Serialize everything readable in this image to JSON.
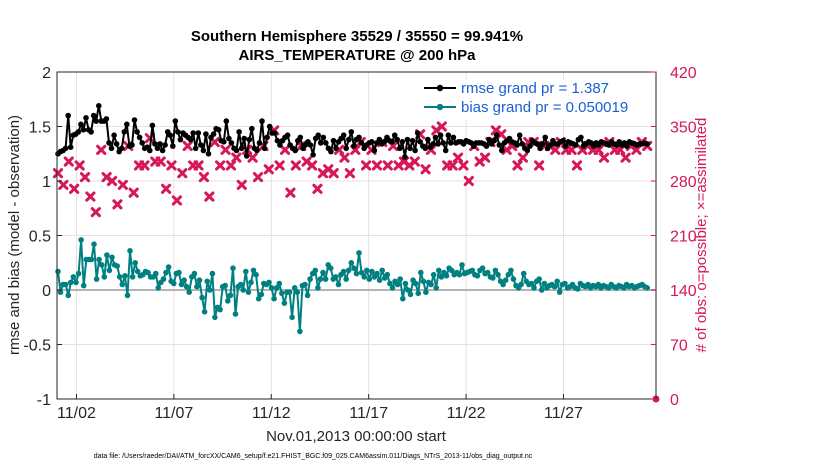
{
  "chart_data": {
    "type": "line",
    "title": "Southern Hemisphere 35529 / 35550 = 99.941%",
    "subtitle": "AIRS_TEMPERATURE @ 200 hPa",
    "xlabel": "Nov.01,2013 00:00:00 start",
    "ylabel_left": "rmse and bias (model - observation)",
    "ylabel_right": "# of obs: o=possible; ×=assimilated",
    "ylim_left": [
      -1,
      2
    ],
    "ylim_right": [
      0,
      420
    ],
    "xlim": [
      0,
      30.75
    ],
    "left_ticks": [
      "-1",
      "-0.5",
      "0",
      "0.5",
      "1",
      "1.5",
      "2"
    ],
    "right_ticks": [
      "0",
      "70",
      "140",
      "210",
      "280",
      "350",
      "420"
    ],
    "x_ticks": [
      {
        "day": 1,
        "label": "11/02"
      },
      {
        "day": 6,
        "label": "11/07"
      },
      {
        "day": 11,
        "label": "11/12"
      },
      {
        "day": 16,
        "label": "11/17"
      },
      {
        "day": 21,
        "label": "11/22"
      },
      {
        "day": 26,
        "label": "11/27"
      }
    ],
    "footnote": "data file: /Users/raeder/DAI/ATM_forcXX/CAM6_setup/f.e21.FHIST_BGC.f09_025.CAM6assim.011/Diags_NTrS_2013-11/obs_diag_output.nc",
    "colors": {
      "rmse": "#000000",
      "bias": "#008080",
      "obs": "#d6175a",
      "legend_text": "#1a5fd6",
      "zero_line": "#b4b4b4",
      "grid": "#eddde2"
    },
    "series": [
      {
        "name": "rmse grand pr = 1.387",
        "axis": "left",
        "values": [
          1.25,
          1.27,
          1.28,
          1.3,
          1.6,
          1.31,
          1.42,
          1.43,
          1.45,
          1.52,
          1.47,
          1.58,
          1.47,
          1.45,
          1.6,
          1.55,
          1.69,
          1.55,
          1.55,
          1.57,
          1.35,
          1.3,
          1.42,
          1.34,
          1.27,
          1.3,
          1.45,
          1.52,
          1.32,
          1.33,
          1.56,
          1.45,
          1.4,
          1.35,
          1.3,
          1.31,
          1.28,
          1.51,
          1.34,
          1.3,
          1.34,
          1.28,
          1.33,
          1.45,
          1.42,
          1.32,
          1.55,
          1.45,
          1.38,
          1.44,
          1.42,
          1.4,
          1.38,
          1.44,
          1.3,
          1.44,
          1.33,
          1.28,
          1.43,
          1.25,
          1.4,
          1.43,
          1.48,
          1.47,
          1.37,
          1.36,
          1.55,
          1.39,
          1.35,
          1.3,
          1.28,
          1.45,
          1.3,
          1.39,
          1.23,
          1.38,
          1.48,
          1.3,
          1.28,
          1.35,
          1.55,
          1.3,
          1.4,
          1.5,
          1.44,
          1.44,
          1.37,
          1.33,
          1.37,
          1.4,
          1.42,
          1.33,
          1.3,
          1.28,
          1.37,
          1.4,
          1.3,
          1.33,
          1.36,
          1.33,
          1.24,
          1.39,
          1.42,
          1.35,
          1.4,
          1.35,
          1.3,
          1.27,
          1.37,
          1.3,
          1.36,
          1.39,
          1.42,
          1.3,
          1.38,
          1.45,
          1.32,
          1.38,
          1.4,
          1.35,
          1.3,
          1.33,
          1.35,
          1.36,
          1.28,
          1.35,
          1.38,
          1.34,
          1.36,
          1.4,
          1.37,
          1.36,
          1.42,
          1.38,
          1.3,
          1.36,
          1.22,
          1.38,
          1.3,
          1.37,
          1.28,
          1.44,
          1.36,
          1.32,
          1.3,
          1.38,
          1.31,
          1.34,
          1.4,
          1.34,
          1.42,
          1.35,
          1.28,
          1.42,
          1.35,
          1.4,
          1.35,
          1.36,
          1.36,
          1.34,
          1.37,
          1.36,
          1.35,
          1.32,
          1.35,
          1.35,
          1.35,
          1.34,
          1.32,
          1.38,
          1.34,
          1.37,
          1.42,
          1.33,
          1.28,
          1.35,
          1.37,
          1.39,
          1.36,
          1.35,
          1.33,
          1.42,
          1.34,
          1.3,
          1.28,
          1.32,
          1.37,
          1.35,
          1.34,
          1.3,
          1.34,
          1.4,
          1.3,
          1.33,
          1.37,
          1.34,
          1.34,
          1.36,
          1.37,
          1.32,
          1.36,
          1.35,
          1.34,
          1.33,
          1.38,
          1.4,
          1.32,
          1.34,
          1.36,
          1.35,
          1.32,
          1.35,
          1.33,
          1.36,
          1.35,
          1.34,
          1.33,
          1.36,
          1.34,
          1.33,
          1.36,
          1.33,
          1.35,
          1.32,
          1.36,
          1.35,
          1.34,
          1.33,
          1.34,
          1.34,
          1.35,
          1.34
        ]
      },
      {
        "name": "bias grand pr = 0.050019",
        "axis": "left",
        "values": [
          0.17,
          -0.02,
          0.05,
          0.05,
          -0.05,
          0.07,
          0.12,
          0.07,
          0.15,
          0.46,
          0.04,
          0.28,
          0.28,
          0.28,
          0.42,
          0.1,
          0.28,
          0.23,
          0.12,
          0.32,
          0.18,
          0.3,
          0.23,
          0.22,
          0.12,
          0.05,
          0.13,
          -0.05,
          0.36,
          0.12,
          0.25,
          0.17,
          0.13,
          0.14,
          0.17,
          0.16,
          0.12,
          0.12,
          0.15,
          0.02,
          0.07,
          0.1,
          0.16,
          0.21,
          0.08,
          0.06,
          0.15,
          0.16,
          0.05,
          0.09,
          0.03,
          -0.02,
          0.12,
          0.15,
          0.03,
          0.09,
          -0.07,
          -0.2,
          0.08,
          0.0,
          0.15,
          -0.25,
          -0.16,
          -0.18,
          0.03,
          0.04,
          -0.1,
          -0.05,
          0.2,
          -0.22,
          0.03,
          0.05,
          0.0,
          0.17,
          -0.02,
          0.07,
          0.18,
          0.14,
          -0.08,
          -0.04,
          0.06,
          0.05,
          0.07,
          0.02,
          -0.08,
          0.02,
          0.06,
          -0.03,
          -0.12,
          -0.02,
          -0.02,
          -0.25,
          0.02,
          -0.02,
          -0.38,
          0.04,
          0.05,
          -0.05,
          0.1,
          0.15,
          0.18,
          0.02,
          0.1,
          0.16,
          0.1,
          0.23,
          0.2,
          0.1,
          0.12,
          0.05,
          0.14,
          0.17,
          0.1,
          0.18,
          0.25,
          0.2,
          0.15,
          0.34,
          0.16,
          0.12,
          0.18,
          0.1,
          0.17,
          0.12,
          0.15,
          0.09,
          0.18,
          0.11,
          0.14,
          0.06,
          0.02,
          0.08,
          0.05,
          0.1,
          -0.08,
          0.06,
          0.0,
          -0.04,
          0.09,
          0.06,
          -0.03,
          0.16,
          0.08,
          -0.02,
          0.07,
          0.05,
          0.14,
          0.02,
          0.18,
          0.12,
          0.16,
          0.13,
          0.2,
          0.18,
          0.14,
          0.16,
          0.14,
          0.23,
          0.15,
          0.16,
          0.17,
          0.18,
          0.14,
          0.13,
          0.18,
          0.2,
          0.15,
          0.16,
          0.12,
          0.11,
          0.18,
          0.14,
          0.08,
          0.05,
          0.09,
          0.14,
          0.18,
          0.1,
          0.04,
          0.02,
          0.05,
          0.15,
          0.08,
          0.05,
          0.06,
          0.02,
          0.08,
          0.1,
          0.0,
          0.06,
          0.02,
          0.04,
          0.05,
          0.03,
          0.08,
          -0.02,
          0.05,
          0.06,
          0.02,
          0.03,
          0.05,
          0.02,
          0.01,
          0.06,
          0.04,
          0.03,
          0.05,
          0.02,
          0.04,
          0.03,
          0.05,
          0.02,
          0.04,
          0.03,
          0.02,
          0.05,
          0.03,
          0.02,
          0.04,
          0.03,
          0.02,
          0.05,
          0.03,
          0.04,
          0.02,
          0.03,
          0.04,
          0.05,
          0.03,
          0.02
        ]
      },
      {
        "name": "assimilated obs",
        "axis": "right",
        "values": [
          290,
          275,
          305,
          270,
          300,
          285,
          260,
          240,
          320,
          285,
          280,
          250,
          275,
          325,
          265,
          300,
          300,
          335,
          305,
          305,
          270,
          300,
          255,
          290,
          325,
          300,
          300,
          285,
          260,
          330,
          300,
          320,
          300,
          310,
          275,
          320,
          310,
          285,
          325,
          295,
          345,
          300,
          320,
          265,
          300,
          325,
          305,
          300,
          270,
          290,
          295,
          290,
          320,
          310,
          290,
          320,
          330,
          300,
          320,
          300,
          330,
          300,
          325,
          300,
          305,
          300,
          305,
          340,
          295,
          320,
          345,
          350,
          300,
          300,
          310,
          300,
          280,
          325,
          305,
          310,
          330,
          345,
          340,
          320,
          325,
          300,
          310,
          330,
          330,
          300,
          325,
          325,
          320,
          330,
          320,
          320,
          300,
          320,
          325,
          320,
          320,
          310,
          330,
          320,
          320,
          310,
          325,
          320,
          330,
          325
        ]
      }
    ]
  }
}
